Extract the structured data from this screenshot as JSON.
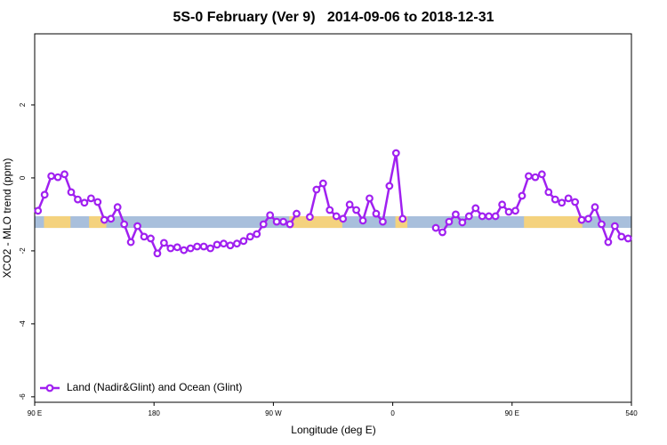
{
  "chart_data": {
    "type": "line",
    "title": "5S-0 February (Ver 9)   2014-09-06 to 2018-12-31",
    "x_label": "Longitude (deg E)",
    "y_label": "XCO2 - MLO trend (ppm)",
    "xlim": [
      90,
      540
    ],
    "ylim": [
      -6.15,
      3.95
    ],
    "xticks": [
      {
        "value": 90,
        "label": "90 E"
      },
      180,
      {
        "value": 270,
        "label": "90 W"
      },
      {
        "value": 360,
        "label": "0"
      },
      {
        "value": 450,
        "label": "90 E"
      },
      540
    ],
    "yticks": [
      -6,
      -4,
      -2,
      0,
      2
    ],
    "band": {
      "ylim": [
        -1.37,
        -1.05
      ],
      "ocean_color": "#a8bfdc",
      "land_color": "#f4d27e",
      "land_x": [
        [
          97,
          117
        ],
        [
          131,
          144
        ],
        [
          282,
          322
        ],
        [
          362,
          371
        ],
        [
          459,
          503
        ]
      ]
    },
    "legend": "bottom-left",
    "x": [
      92.5,
      97.5,
      102.5,
      107.5,
      112.5,
      117.5,
      122.5,
      127.5,
      132.5,
      137.5,
      142.5,
      147.5,
      152.5,
      157.5,
      162.5,
      167.5,
      172.5,
      177.5,
      182.5,
      187.5,
      192.5,
      197.5,
      202.5,
      207.5,
      212.5,
      217.5,
      222.5,
      227.5,
      232.5,
      237.5,
      242.5,
      247.5,
      252.5,
      257.5,
      262.5,
      267.5,
      272.5,
      277.5,
      282.5,
      287.5,
      292.5,
      297.5,
      302.5,
      307.5,
      312.5,
      317.5,
      322.5,
      327.5,
      332.5,
      337.5,
      342.5,
      347.5,
      352.5,
      357.5,
      362.5,
      367.5,
      372.5,
      377.5,
      382.5,
      387.5,
      392.5,
      397.5,
      402.5,
      407.5,
      412.5,
      417.5,
      422.5,
      427.5,
      432.5,
      437.5,
      442.5,
      447.5,
      452.5,
      457.5,
      462.5,
      467.5,
      472.5,
      477.5,
      482.5,
      487.5,
      492.5,
      497.5,
      502.5,
      507.5,
      512.5,
      517.5,
      522.5,
      527.5,
      532.5,
      537.5
    ],
    "series": [
      {
        "name": "Land (Nadir&Glint) and Ocean (Glint)",
        "color": "#a020f0",
        "values": [
          -0.9,
          -0.46,
          0.05,
          0.02,
          0.1,
          -0.39,
          -0.59,
          -0.68,
          -0.56,
          -0.66,
          -1.15,
          -1.12,
          -0.8,
          -1.27,
          -1.76,
          -1.32,
          -1.61,
          -1.66,
          -2.07,
          -1.78,
          -1.93,
          -1.9,
          -1.98,
          -1.93,
          -1.88,
          -1.88,
          -1.93,
          -1.83,
          -1.8,
          -1.85,
          -1.8,
          -1.73,
          -1.61,
          -1.54,
          -1.27,
          -1.02,
          -1.2,
          -1.2,
          -1.27,
          -0.98,
          null,
          -1.07,
          -0.32,
          -0.15,
          -0.88,
          -1.05,
          -1.12,
          -0.73,
          -0.88,
          -1.17,
          -0.56,
          -0.98,
          -1.2,
          -0.22,
          0.68,
          -1.12,
          null,
          null,
          null,
          null,
          -1.37,
          -1.49,
          -1.2,
          -1.0,
          -1.22,
          -1.05,
          -0.83,
          -1.05,
          -1.05,
          -1.05,
          -0.73,
          -0.93,
          -0.9,
          -0.49,
          0.05,
          0.02,
          0.1,
          -0.39,
          -0.59,
          -0.68,
          -0.56,
          -0.66,
          -1.15,
          -1.12,
          -0.8,
          -1.27,
          -1.76,
          -1.32,
          -1.61,
          -1.66
        ]
      }
    ]
  }
}
